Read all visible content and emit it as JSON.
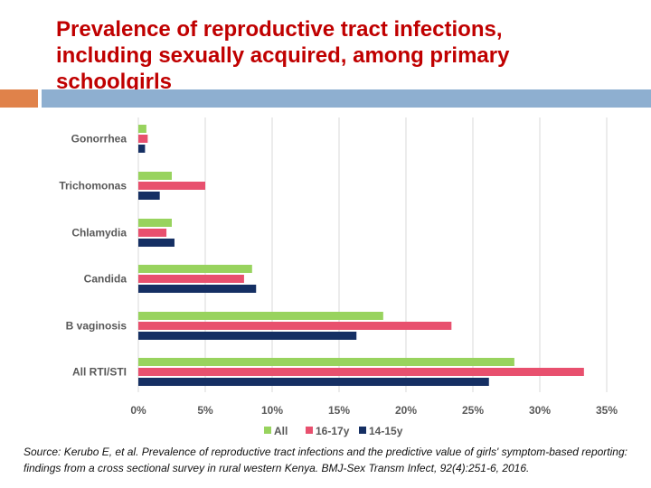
{
  "slide": {
    "title": "Prevalence of reproductive tract infections,\nincluding sexually acquired, among primary\nschoolgirls",
    "source": "Source: Kerubo E, et al. Prevalence of reproductive tract infections and the predictive value of girls' symptom-based reporting: findings from a cross sectional survey in rural western Kenya. BMJ-Sex Transm Infect, 92(4):251-6, 2016.",
    "accent_orange": "#e0824a",
    "accent_blue": "#8eafd0",
    "title_color": "#c00000"
  },
  "chart_data": {
    "type": "bar",
    "orientation": "horizontal",
    "categories": [
      "Gonorrhea",
      "Trichomonas",
      "Chlamydia",
      "Candida",
      "B vaginosis",
      "All RTI/STI"
    ],
    "series": [
      {
        "name": "All",
        "color": "#98d35e",
        "values": [
          0.6,
          2.5,
          2.5,
          8.5,
          18.3,
          28.1
        ]
      },
      {
        "name": "16-17y",
        "color": "#e8506e",
        "values": [
          0.7,
          5.0,
          2.1,
          7.9,
          23.4,
          33.3
        ]
      },
      {
        "name": "14-15y",
        "color": "#152f63",
        "values": [
          0.5,
          1.6,
          2.7,
          8.8,
          16.3,
          26.2
        ]
      }
    ],
    "x_ticks": [
      "0%",
      "5%",
      "10%",
      "15%",
      "20%",
      "25%",
      "30%",
      "35%"
    ],
    "xlim": [
      0,
      35
    ],
    "grid": true,
    "legend_position": "bottom",
    "title": "",
    "xlabel": "",
    "ylabel": ""
  }
}
